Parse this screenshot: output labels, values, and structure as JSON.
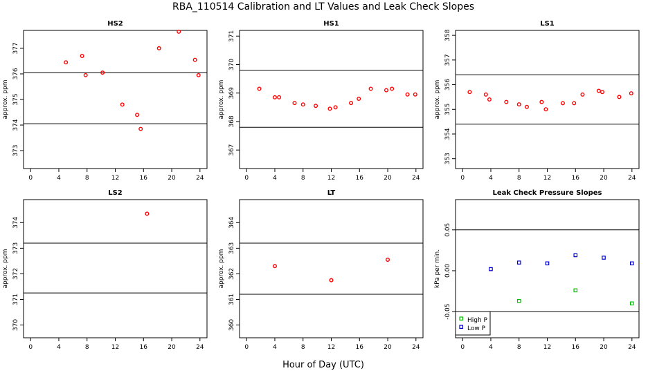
{
  "title": "RBA_110514  Calibration and LT Values and Leak Check Slopes",
  "xlabel": "Hour of Day (UTC)",
  "chart_data": [
    {
      "type": "scatter",
      "title": "HS2",
      "ylabel": "approx. ppm",
      "xlim": [
        -1,
        25
      ],
      "ylim": [
        372.3,
        377.7
      ],
      "xticks": [
        0,
        4,
        8,
        12,
        16,
        20,
        24
      ],
      "yticks": [
        373,
        374,
        375,
        376,
        377
      ],
      "hlines": [
        376.05,
        374.05
      ],
      "series": [
        {
          "name": "values",
          "color": "#ff0000",
          "marker": "circle",
          "points": [
            [
              5,
              376.45
            ],
            [
              7.3,
              376.7
            ],
            [
              7.8,
              375.95
            ],
            [
              10.2,
              376.05
            ],
            [
              13,
              374.8
            ],
            [
              15.1,
              374.4
            ],
            [
              15.6,
              373.85
            ],
            [
              18.2,
              377.0
            ],
            [
              21,
              377.65
            ],
            [
              23.3,
              376.55
            ],
            [
              23.8,
              375.95
            ]
          ]
        }
      ]
    },
    {
      "type": "scatter",
      "title": "HS1",
      "ylabel": "approx. ppm",
      "xlim": [
        -1,
        25
      ],
      "ylim": [
        366.35,
        371.2
      ],
      "xticks": [
        0,
        4,
        8,
        12,
        16,
        20,
        24
      ],
      "yticks": [
        367,
        368,
        369,
        370,
        371
      ],
      "hlines": [
        369.8,
        367.8
      ],
      "series": [
        {
          "name": "values",
          "color": "#ff0000",
          "marker": "circle",
          "points": [
            [
              1.8,
              369.15
            ],
            [
              4.0,
              368.85
            ],
            [
              4.6,
              368.85
            ],
            [
              6.8,
              368.65
            ],
            [
              8.0,
              368.6
            ],
            [
              9.8,
              368.55
            ],
            [
              11.8,
              368.45
            ],
            [
              12.6,
              368.5
            ],
            [
              14.8,
              368.65
            ],
            [
              15.9,
              368.8
            ],
            [
              17.6,
              369.15
            ],
            [
              19.8,
              369.1
            ],
            [
              20.6,
              369.15
            ],
            [
              22.8,
              368.95
            ],
            [
              23.9,
              368.95
            ]
          ]
        }
      ]
    },
    {
      "type": "scatter",
      "title": "LS1",
      "ylabel": "approx. ppm",
      "xlim": [
        -1,
        25
      ],
      "ylim": [
        352.6,
        358.2
      ],
      "xticks": [
        0,
        4,
        8,
        12,
        16,
        20,
        24
      ],
      "yticks": [
        353,
        354,
        355,
        356,
        357,
        358
      ],
      "hlines": [
        356.4,
        354.4
      ],
      "series": [
        {
          "name": "values",
          "color": "#ff0000",
          "marker": "circle",
          "points": [
            [
              1.0,
              355.7
            ],
            [
              3.3,
              355.6
            ],
            [
              3.8,
              355.4
            ],
            [
              6.2,
              355.3
            ],
            [
              8.0,
              355.2
            ],
            [
              9.1,
              355.1
            ],
            [
              11.2,
              355.3
            ],
            [
              11.8,
              355.0
            ],
            [
              14.2,
              355.25
            ],
            [
              15.8,
              355.25
            ],
            [
              17.0,
              355.6
            ],
            [
              19.3,
              355.75
            ],
            [
              19.8,
              355.7
            ],
            [
              22.2,
              355.5
            ],
            [
              23.9,
              355.65
            ]
          ]
        }
      ]
    },
    {
      "type": "scatter",
      "title": "LS2",
      "ylabel": "approx. ppm",
      "xlim": [
        -1,
        25
      ],
      "ylim": [
        369.5,
        374.9
      ],
      "xticks": [
        0,
        4,
        8,
        12,
        16,
        20,
        24
      ],
      "yticks": [
        370,
        371,
        372,
        373,
        374
      ],
      "hlines": [
        373.2,
        371.25
      ],
      "series": [
        {
          "name": "values",
          "color": "#ff0000",
          "marker": "circle",
          "points": [
            [
              16.5,
              374.35
            ]
          ]
        }
      ]
    },
    {
      "type": "scatter",
      "title": "LT",
      "ylabel": "approx. ppm",
      "xlim": [
        -1,
        25
      ],
      "ylim": [
        359.5,
        364.9
      ],
      "xticks": [
        0,
        4,
        8,
        12,
        16,
        20,
        24
      ],
      "yticks": [
        360,
        361,
        362,
        363,
        364
      ],
      "hlines": [
        363.2,
        361.2
      ],
      "series": [
        {
          "name": "values",
          "color": "#ff0000",
          "marker": "circle",
          "points": [
            [
              4.0,
              362.3
            ],
            [
              12.0,
              361.75
            ],
            [
              20.0,
              362.55
            ]
          ]
        }
      ]
    },
    {
      "type": "scatter",
      "title": "Leak Check Pressure Slopes",
      "ylabel": "kPa per min.",
      "xlim": [
        -1,
        25
      ],
      "ylim": [
        -0.082,
        0.087
      ],
      "xticks": [
        0,
        4,
        8,
        12,
        16,
        20,
        24
      ],
      "yticks": [
        -0.05,
        0.0,
        0.05
      ],
      "ytick_labels": [
        "-0.05",
        "0.00",
        "0.05"
      ],
      "hlines": [
        0.05,
        -0.05
      ],
      "legend": "bottom-left",
      "series": [
        {
          "name": "High P",
          "color": "#00c000",
          "marker": "square",
          "points": [
            [
              8.0,
              -0.037
            ],
            [
              16.0,
              -0.024
            ],
            [
              24.0,
              -0.04
            ]
          ]
        },
        {
          "name": "Low P",
          "color": "#0000cc",
          "marker": "square",
          "points": [
            [
              4.0,
              0.002
            ],
            [
              8.0,
              0.01
            ],
            [
              12.0,
              0.009
            ],
            [
              16.0,
              0.019
            ],
            [
              20.0,
              0.016
            ],
            [
              24.0,
              0.009
            ]
          ]
        }
      ]
    }
  ]
}
